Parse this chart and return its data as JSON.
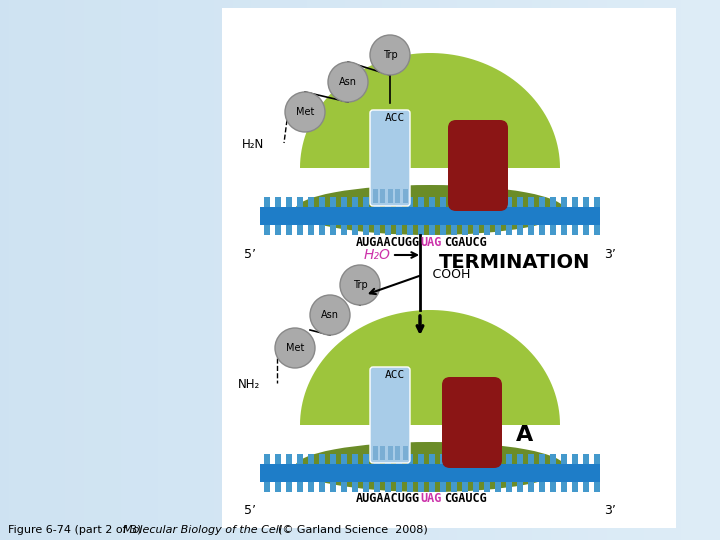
{
  "bg_color": "#c5dff0",
  "panel_color": "#ffffff",
  "green_light": "#9dc53c",
  "green_dark": "#6b8c28",
  "mrna_blue": "#1e7dc8",
  "mrna_teeth": "#4499cc",
  "trna_color": "#a8cce8",
  "rf_color": "#8b1515",
  "ball_color": "#aaaaaa",
  "ball_edge": "#888888",
  "pink": "#cc33aa",
  "black": "#000000",
  "white": "#ffffff",
  "caption": "Figure 6-74 (part 2 of 3)  ",
  "caption_italic": "Molecular Biology of the Cell",
  "caption_end": "(© Garland Science  2008)",
  "figsize": [
    7.2,
    5.4
  ],
  "dpi": 100
}
